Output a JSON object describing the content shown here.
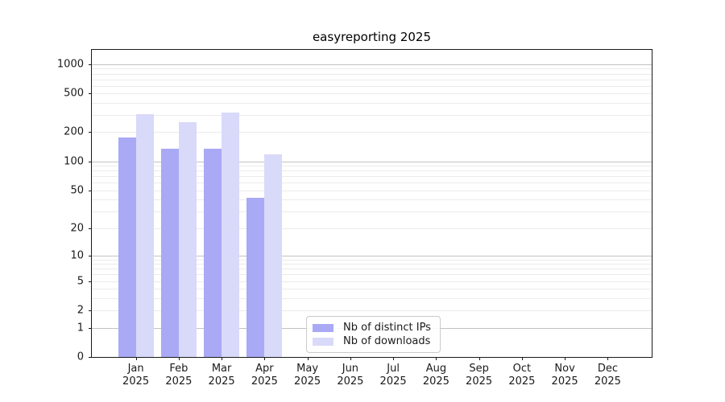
{
  "chart_data": {
    "type": "bar",
    "title": "easyreporting 2025",
    "categories": [
      "Jan",
      "Feb",
      "Mar",
      "Apr",
      "May",
      "Jun",
      "Jul",
      "Aug",
      "Sep",
      "Oct",
      "Nov",
      "Dec"
    ],
    "category_year": "2025",
    "series": [
      {
        "name": "Nb of distinct IPs",
        "color": "#a9a9f5",
        "values": [
          178,
          136,
          134,
          42,
          0,
          0,
          0,
          0,
          0,
          0,
          0,
          0
        ]
      },
      {
        "name": "Nb of downloads",
        "color": "#d9d9f9",
        "values": [
          305,
          253,
          317,
          118,
          0,
          0,
          0,
          0,
          0,
          0,
          0,
          0
        ]
      }
    ],
    "y_ticks": [
      0,
      1,
      2,
      5,
      10,
      20,
      50,
      100,
      200,
      500,
      1000
    ],
    "scale": "log1p",
    "ylim": [
      0,
      1400
    ],
    "grid": true,
    "legend_position": "inside lower-center-left",
    "axis_color": "#1a1a1a",
    "major_grid_color": "#c2c2c2",
    "minor_grid_color": "#ebebeb"
  }
}
